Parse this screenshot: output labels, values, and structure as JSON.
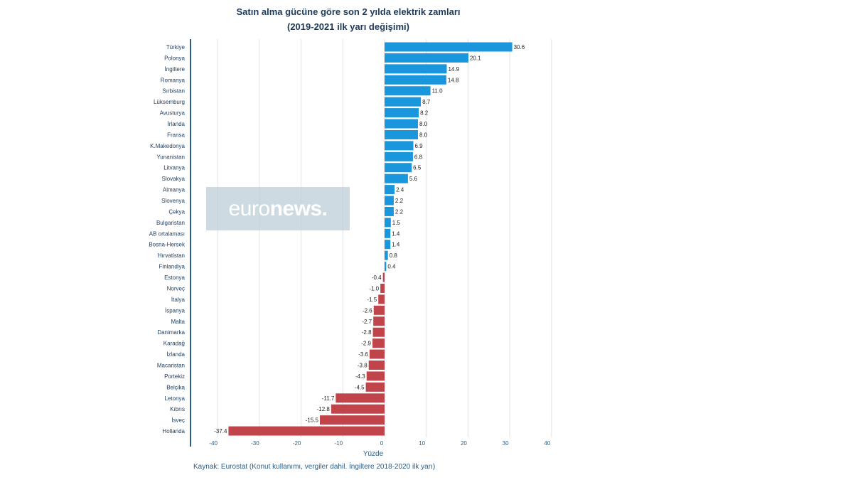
{
  "chart_data": {
    "type": "bar",
    "orientation": "horizontal",
    "title": "Satın alma gücüne göre son 2 yılda elektrik zamları",
    "subtitle": "(2019-2021 ilk yarı değişimi)",
    "xlabel": "Yüzde",
    "ylabel": "",
    "xlim": [
      -40,
      40
    ],
    "xticks": [
      -40,
      -30,
      -20,
      -10,
      0,
      10,
      20,
      30,
      40
    ],
    "grid": true,
    "source": "Kaynak: Eurostat (Konut kullanımı, vergiler dahil. İngiltere 2018-2020 ilk yarı)",
    "watermark": "euronews.",
    "colors": {
      "positive": "#1a96dc",
      "negative": "#c0444a"
    },
    "categories": [
      "Türkiye",
      "Polonya",
      "İngiltere",
      "Romanya",
      "Sırbistan",
      "Lüksemburg",
      "Avusturya",
      "İrlanda",
      "Fransa",
      "K.Makedonya",
      "Yunanistan",
      "Litvanya",
      "Slovakya",
      "Almanya",
      "Slovenya",
      "Çekya",
      "Bulgaristan",
      "AB ortalaması",
      "Bosna-Hersek",
      "Hırvatistan",
      "Finlandiya",
      "Estonya",
      "Norveç",
      "İtalya",
      "İspanya",
      "Malta",
      "Danimarka",
      "Karadağ",
      "İzlanda",
      "Macaristan",
      "Portekiz",
      "Belçika",
      "Letonya",
      "Kıbrıs",
      "İsveç",
      "Hollanda"
    ],
    "values": [
      30.6,
      20.1,
      14.9,
      14.8,
      11.0,
      8.7,
      8.2,
      8.0,
      8.0,
      6.9,
      6.8,
      6.5,
      5.6,
      2.4,
      2.2,
      2.2,
      1.5,
      1.4,
      1.4,
      0.8,
      0.4,
      -0.4,
      -1.0,
      -1.5,
      -2.6,
      -2.7,
      -2.8,
      -2.9,
      -3.6,
      -3.8,
      -4.3,
      -4.5,
      -11.7,
      -12.8,
      -15.5,
      -37.4
    ]
  }
}
